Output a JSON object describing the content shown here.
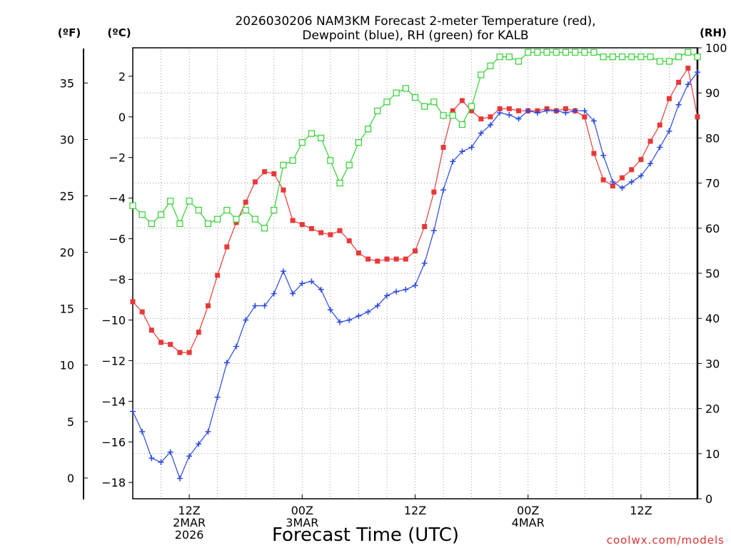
{
  "chart_data": {
    "type": "line",
    "title_line1": "2026030206 NAM3KM Forecast 2-meter Temperature (red),",
    "title_line2": "Dewpoint (blue), RH (green) for KALB",
    "xlabel": "Forecast Time (UTC)",
    "credit": "coolwx.com/models",
    "units": {
      "fahrenheit": "(ºF)",
      "celsius": "(ºC)",
      "rh": "(RH)"
    },
    "celsius_axis": {
      "ylim": [
        -18.8,
        3.4
      ],
      "ticks": [
        "2",
        "0",
        "−2",
        "−4",
        "−6",
        "−8",
        "−10",
        "−12",
        "−14",
        "−16",
        "−18"
      ],
      "tick_values": [
        2,
        0,
        -2,
        -4,
        -6,
        -8,
        -10,
        -12,
        -14,
        -16,
        -18
      ]
    },
    "fahrenheit_axis": {
      "ticks": [
        "35",
        "30",
        "25",
        "20",
        "15",
        "10",
        "5",
        "0"
      ],
      "tick_values": [
        35,
        30,
        25,
        20,
        15,
        10,
        5,
        0
      ]
    },
    "rh_axis": {
      "ylim": [
        0,
        100
      ],
      "ticks": [
        "100",
        "90",
        "80",
        "70",
        "60",
        "50",
        "40",
        "30",
        "20",
        "10",
        "0"
      ],
      "tick_values": [
        100,
        90,
        80,
        70,
        60,
        50,
        40,
        30,
        20,
        10,
        0
      ]
    },
    "x_axis": {
      "unit": "forecast hour",
      "range": [
        6,
        66
      ],
      "labels": [
        {
          "hour": 12,
          "lines": [
            "12Z",
            "2MAR",
            "2026"
          ]
        },
        {
          "hour": 24,
          "lines": [
            "00Z",
            "3MAR"
          ]
        },
        {
          "hour": 36,
          "lines": [
            "12Z"
          ]
        },
        {
          "hour": 48,
          "lines": [
            "00Z",
            "4MAR"
          ]
        },
        {
          "hour": 60,
          "lines": [
            "12Z"
          ]
        }
      ]
    },
    "x": [
      6,
      7,
      8,
      9,
      10,
      11,
      12,
      13,
      14,
      15,
      16,
      17,
      18,
      19,
      20,
      21,
      22,
      23,
      24,
      25,
      26,
      27,
      28,
      29,
      30,
      31,
      32,
      33,
      34,
      35,
      36,
      37,
      38,
      39,
      40,
      41,
      42,
      43,
      44,
      45,
      46,
      47,
      48,
      49,
      50,
      51,
      52,
      53,
      54,
      55,
      56,
      57,
      58,
      59,
      60,
      61,
      62,
      63,
      64,
      65,
      66
    ],
    "series": [
      {
        "name": "Temperature",
        "color": "#e83838",
        "marker": "filled-square",
        "axis": "celsius",
        "values": [
          -9.1,
          -9.6,
          -10.5,
          -11.1,
          -11.2,
          -11.6,
          -11.6,
          -10.6,
          -9.3,
          -7.8,
          -6.4,
          -5.2,
          -4.2,
          -3.2,
          -2.7,
          -2.8,
          -3.6,
          -5.1,
          -5.3,
          -5.5,
          -5.7,
          -5.8,
          -5.6,
          -6.1,
          -6.7,
          -7.0,
          -7.1,
          -7.0,
          -7.0,
          -7.0,
          -6.6,
          -5.4,
          -3.7,
          -1.5,
          0.3,
          0.8,
          0.3,
          -0.1,
          0.0,
          0.4,
          0.4,
          0.3,
          0.3,
          0.3,
          0.4,
          0.3,
          0.4,
          0.3,
          0.0,
          -1.8,
          -3.1,
          -3.4,
          -3.0,
          -2.6,
          -2.1,
          -1.2,
          -0.4,
          0.9,
          1.7,
          2.4,
          0
        ]
      },
      {
        "name": "Dewpoint",
        "color": "#2848e0",
        "marker": "plus",
        "axis": "celsius",
        "values": [
          -14.5,
          -15.5,
          -16.8,
          -17.0,
          -16.5,
          -17.8,
          -16.7,
          -16.1,
          -15.5,
          -13.8,
          -12.1,
          -11.3,
          -10.0,
          -9.3,
          -9.3,
          -8.7,
          -7.6,
          -8.7,
          -8.2,
          -8.1,
          -8.5,
          -9.5,
          -10.1,
          -10.0,
          -9.8,
          -9.6,
          -9.3,
          -8.8,
          -8.6,
          -8.5,
          -8.3,
          -7.2,
          -5.6,
          -3.6,
          -2.2,
          -1.7,
          -1.5,
          -0.8,
          -0.4,
          0.2,
          0.1,
          -0.1,
          0.3,
          0.2,
          0.3,
          0.3,
          0.2,
          0.3,
          0.3,
          -0.2,
          -1.9,
          -3.2,
          -3.5,
          -3.2,
          -2.9,
          -2.3,
          -1.5,
          -0.7,
          0.6,
          1.6,
          2.2
        ]
      },
      {
        "name": "RH",
        "color": "#30d030",
        "marker": "open-square",
        "axis": "rh",
        "values": [
          65,
          63,
          61,
          63,
          66,
          61,
          66,
          64,
          61,
          62,
          64,
          62,
          64,
          62,
          60,
          64,
          74,
          75,
          79,
          81,
          80,
          75,
          70,
          74,
          79,
          82,
          86,
          88,
          90,
          91,
          89,
          87,
          88,
          85,
          85,
          83,
          87,
          94,
          96,
          98,
          98,
          97,
          99,
          99,
          99,
          99,
          99,
          99,
          99,
          99,
          98,
          98,
          98,
          98,
          98,
          98,
          97,
          97,
          98,
          99,
          98
        ]
      }
    ]
  }
}
